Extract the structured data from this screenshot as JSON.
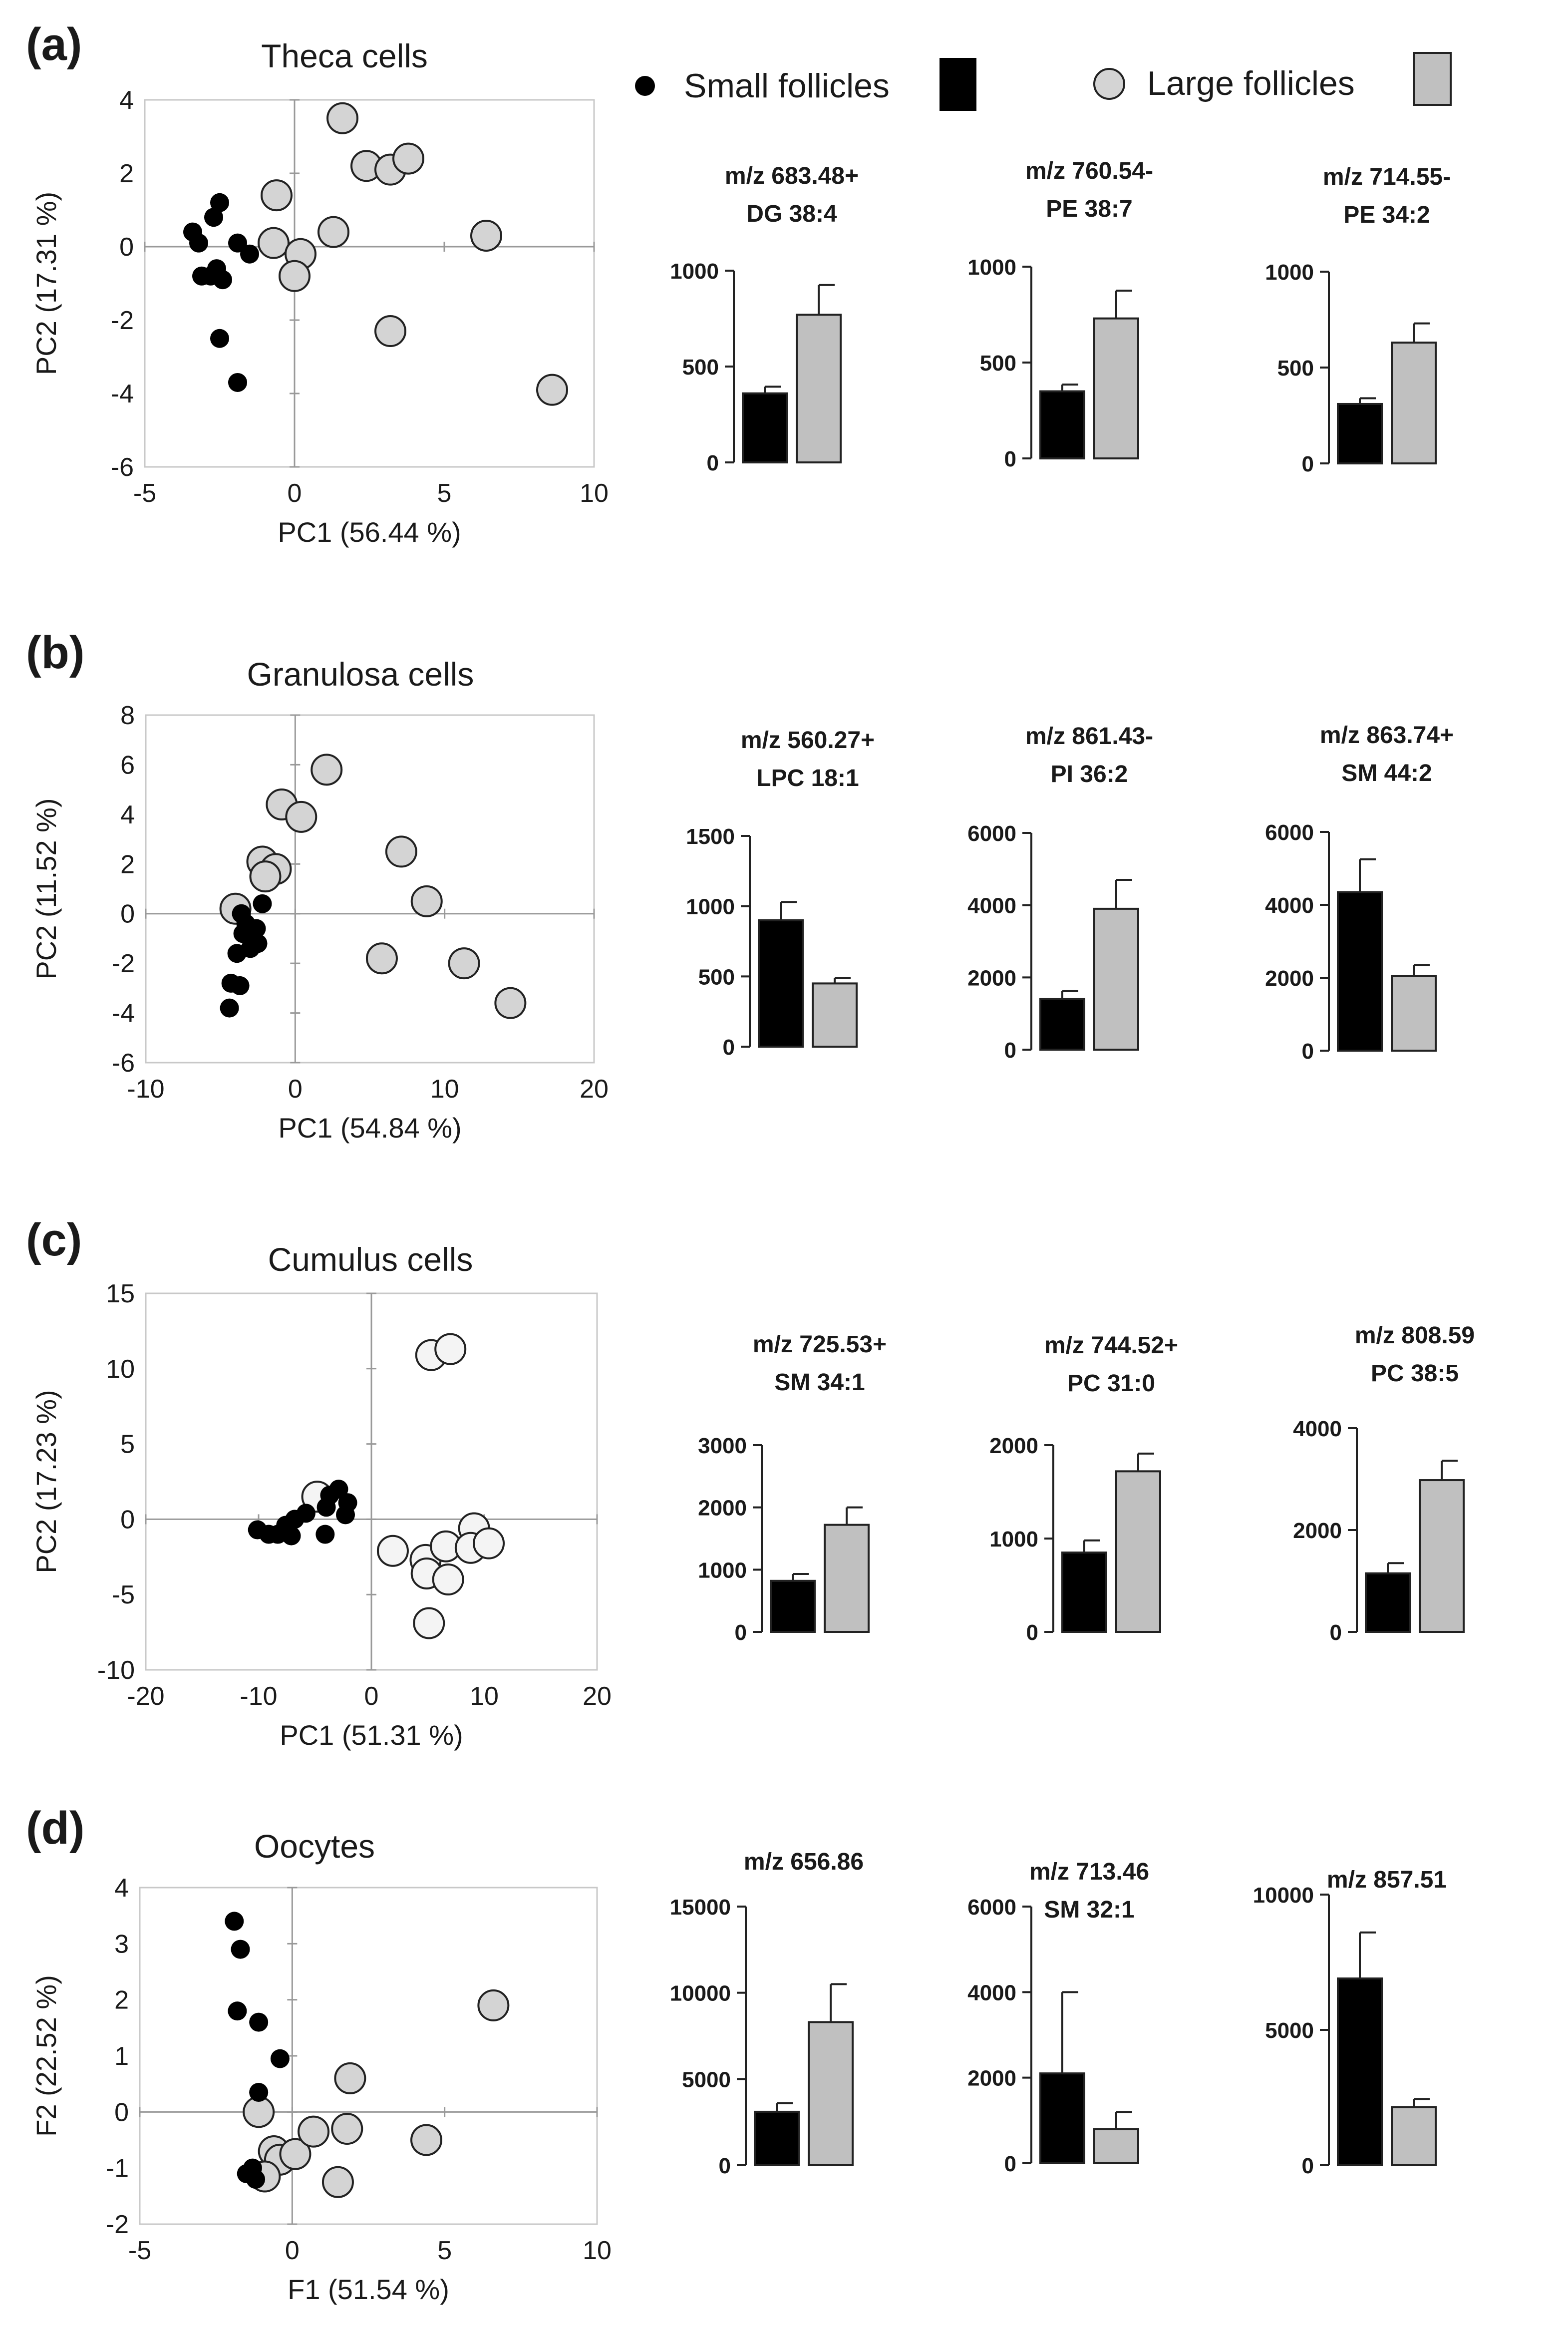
{
  "legend": {
    "small_label": "Small follicles",
    "large_label": "Large follicles"
  },
  "colors": {
    "small": "#000000",
    "large_bar": "#c0c0c0",
    "large_dot": "#d4d4d4",
    "axis": "#999999",
    "text": "#1a1a1a"
  },
  "chart_data": [
    {
      "panel": "(a)",
      "type": "scatter",
      "title": "Theca cells",
      "xlabel": "PC1 (56.44 %)",
      "ylabel": "PC2 (17.31 %)",
      "xlim": [
        -5,
        10
      ],
      "ylim": [
        -6,
        4
      ],
      "xticks": [
        -5,
        0,
        5,
        10
      ],
      "yticks": [
        -6,
        -4,
        -2,
        0,
        2,
        4
      ],
      "series": [
        {
          "name": "Small follicles",
          "points": [
            [
              -3.4,
              0.4
            ],
            [
              -3.2,
              0.1
            ],
            [
              -3.1,
              -0.8
            ],
            [
              -2.7,
              0.8
            ],
            [
              -2.5,
              1.2
            ],
            [
              -2.6,
              -0.6
            ],
            [
              -2.4,
              -0.9
            ],
            [
              -2.5,
              -2.5
            ],
            [
              -1.9,
              0.1
            ],
            [
              -1.5,
              -0.2
            ],
            [
              -1.9,
              -3.7
            ],
            [
              -2.8,
              -0.8
            ]
          ]
        },
        {
          "name": "Large follicles",
          "points": [
            [
              -0.6,
              1.4
            ],
            [
              -0.7,
              0.1
            ],
            [
              0.2,
              -0.2
            ],
            [
              0.0,
              -0.8
            ],
            [
              1.3,
              0.4
            ],
            [
              1.6,
              3.5
            ],
            [
              2.4,
              2.2
            ],
            [
              3.2,
              2.1
            ],
            [
              3.8,
              2.4
            ],
            [
              3.2,
              -2.3
            ],
            [
              6.4,
              0.3
            ],
            [
              8.6,
              -3.9
            ]
          ]
        }
      ]
    },
    {
      "panel": "(a)",
      "type": "bar",
      "title": [
        "m/z 683.48+",
        "DG 38:4"
      ],
      "categories": [
        "Small follicles",
        "Large follicles"
      ],
      "values": [
        360,
        770
      ],
      "errors": [
        35,
        155
      ],
      "ylim": [
        0,
        1000
      ],
      "yticks": [
        0,
        500,
        1000
      ]
    },
    {
      "panel": "(a)",
      "type": "bar",
      "title": [
        "m/z 760.54-",
        "PE 38:7"
      ],
      "categories": [
        "Small follicles",
        "Large follicles"
      ],
      "values": [
        350,
        730
      ],
      "errors": [
        35,
        145
      ],
      "ylim": [
        0,
        1000
      ],
      "yticks": [
        0,
        500,
        1000
      ]
    },
    {
      "panel": "(a)",
      "type": "bar",
      "title": [
        "m/z 714.55-",
        "PE 34:2"
      ],
      "categories": [
        "Small follicles",
        "Large follicles"
      ],
      "values": [
        310,
        630
      ],
      "errors": [
        30,
        100
      ],
      "ylim": [
        0,
        1000
      ],
      "yticks": [
        0,
        500,
        1000
      ]
    },
    {
      "panel": "(b)",
      "type": "scatter",
      "title": "Granulosa cells",
      "xlabel": "PC1 (54.84 %)",
      "ylabel": "PC2 (11.52 %)",
      "xlim": [
        -10,
        20
      ],
      "ylim": [
        -6,
        8
      ],
      "xticks": [
        -10,
        0,
        10,
        20
      ],
      "yticks": [
        -6,
        -4,
        -2,
        0,
        2,
        4,
        6,
        8
      ],
      "series": [
        {
          "name": "Small follicles",
          "points": [
            [
              -2.2,
              0.4
            ],
            [
              -3.6,
              0.0
            ],
            [
              -3.3,
              -0.4
            ],
            [
              -3.5,
              -0.8
            ],
            [
              -2.6,
              -0.6
            ],
            [
              -2.5,
              -1.2
            ],
            [
              -3.0,
              -1.4
            ],
            [
              -3.9,
              -1.6
            ],
            [
              -4.3,
              -2.8
            ],
            [
              -3.7,
              -2.9
            ],
            [
              -4.4,
              -3.8
            ]
          ]
        },
        {
          "name": "Large follicles",
          "points": [
            [
              -4.0,
              0.2
            ],
            [
              -2.2,
              2.1
            ],
            [
              -1.3,
              1.8
            ],
            [
              -2.0,
              1.5
            ],
            [
              -0.9,
              4.4
            ],
            [
              0.4,
              3.9
            ],
            [
              2.1,
              5.8
            ],
            [
              7.1,
              2.5
            ],
            [
              8.8,
              0.5
            ],
            [
              5.8,
              -1.8
            ],
            [
              11.3,
              -2.0
            ],
            [
              14.4,
              -3.6
            ]
          ]
        }
      ]
    },
    {
      "panel": "(b)",
      "type": "bar",
      "title": [
        "m/z 560.27+",
        "LPC 18:1"
      ],
      "categories": [
        "Small follicles",
        "Large follicles"
      ],
      "values": [
        900,
        450
      ],
      "errors": [
        130,
        40
      ],
      "ylim": [
        0,
        1500
      ],
      "yticks": [
        0,
        500,
        1000,
        1500
      ]
    },
    {
      "panel": "(b)",
      "type": "bar",
      "title": [
        "m/z 861.43-",
        "PI 36:2"
      ],
      "categories": [
        "Small follicles",
        "Large follicles"
      ],
      "values": [
        1400,
        3900
      ],
      "errors": [
        220,
        800
      ],
      "ylim": [
        0,
        6000
      ],
      "yticks": [
        0,
        2000,
        4000,
        6000
      ]
    },
    {
      "panel": "(b)",
      "type": "bar",
      "title": [
        "m/z 863.74+",
        "SM 44:2"
      ],
      "categories": [
        "Small follicles",
        "Large follicles"
      ],
      "values": [
        4350,
        2050
      ],
      "errors": [
        900,
        300
      ],
      "ylim": [
        0,
        6000
      ],
      "yticks": [
        0,
        2000,
        4000,
        6000
      ]
    },
    {
      "panel": "(c)",
      "type": "scatter",
      "title": "Cumulus cells",
      "xlabel": "PC1 (51.31 %)",
      "ylabel": "PC2 (17.23 %)",
      "xlim": [
        -20,
        20
      ],
      "ylim": [
        -10,
        15
      ],
      "xticks": [
        -20,
        -10,
        0,
        10,
        20
      ],
      "yticks": [
        -10,
        -5,
        0,
        5,
        10,
        15
      ],
      "series": [
        {
          "name": "Small follicles",
          "points": [
            [
              -2.9,
              2.0
            ],
            [
              -3.7,
              1.6
            ],
            [
              -2.1,
              1.1
            ],
            [
              -4.0,
              0.8
            ],
            [
              -2.3,
              0.3
            ],
            [
              -5.8,
              0.4
            ],
            [
              -6.8,
              0.0
            ],
            [
              -7.6,
              -0.4
            ],
            [
              -8.3,
              -1.0
            ],
            [
              -7.1,
              -1.1
            ],
            [
              -9.1,
              -1.0
            ],
            [
              -10.1,
              -0.7
            ],
            [
              -4.1,
              -1.0
            ]
          ]
        },
        {
          "name": "Large follicles",
          "points": [
            [
              -4.8,
              1.5
            ],
            [
              5.3,
              10.9
            ],
            [
              7.0,
              11.3
            ],
            [
              1.9,
              -2.1
            ],
            [
              4.8,
              -2.7
            ],
            [
              4.9,
              -3.6
            ],
            [
              6.6,
              -1.8
            ],
            [
              6.8,
              -4.0
            ],
            [
              9.1,
              -0.6
            ],
            [
              8.8,
              -1.9
            ],
            [
              10.4,
              -1.6
            ],
            [
              5.1,
              -6.9
            ]
          ]
        }
      ]
    },
    {
      "panel": "(c)",
      "type": "bar",
      "title": [
        "m/z 725.53+",
        "SM 34:1"
      ],
      "categories": [
        "Small follicles",
        "Large follicles"
      ],
      "values": [
        820,
        1720
      ],
      "errors": [
        110,
        280
      ],
      "ylim": [
        0,
        3000
      ],
      "yticks": [
        0,
        1000,
        2000,
        3000
      ]
    },
    {
      "panel": "(c)",
      "type": "bar",
      "title": [
        "m/z 744.52+",
        "PC 31:0"
      ],
      "categories": [
        "Small follicles",
        "Large follicles"
      ],
      "values": [
        850,
        1720
      ],
      "errors": [
        130,
        190
      ],
      "ylim": [
        0,
        2000
      ],
      "yticks": [
        0,
        1000,
        2000
      ]
    },
    {
      "panel": "(c)",
      "type": "bar",
      "title": [
        "m/z 808.59",
        "PC 38:5"
      ],
      "categories": [
        "Small follicles",
        "Large follicles"
      ],
      "values": [
        1150,
        2980
      ],
      "errors": [
        200,
        380
      ],
      "ylim": [
        0,
        4000
      ],
      "yticks": [
        0,
        2000,
        4000
      ]
    },
    {
      "panel": "(d)",
      "type": "scatter",
      "title": "Oocytes",
      "xlabel": "F1 (51.54 %)",
      "ylabel": "F2 (22.52 %)",
      "xlim": [
        -5,
        10
      ],
      "ylim": [
        -2,
        4
      ],
      "xticks": [
        -5,
        0,
        5,
        10
      ],
      "yticks": [
        -2,
        -1,
        0,
        1,
        2,
        3,
        4
      ],
      "series": [
        {
          "name": "Small follicles",
          "points": [
            [
              -1.9,
              3.4
            ],
            [
              -1.7,
              2.9
            ],
            [
              -1.8,
              1.8
            ],
            [
              -1.1,
              1.6
            ],
            [
              -0.4,
              0.95
            ],
            [
              -1.1,
              0.35
            ],
            [
              -1.5,
              -1.1
            ],
            [
              -1.2,
              -1.2
            ],
            [
              -1.3,
              -1.0
            ]
          ]
        },
        {
          "name": "Large follicles",
          "points": [
            [
              -1.1,
              0.0
            ],
            [
              -0.6,
              -0.7
            ],
            [
              -0.4,
              -0.85
            ],
            [
              0.1,
              -0.75
            ],
            [
              0.7,
              -0.35
            ],
            [
              -0.9,
              -1.15
            ],
            [
              1.9,
              0.6
            ],
            [
              1.8,
              -0.3
            ],
            [
              1.5,
              -1.25
            ],
            [
              4.4,
              -0.5
            ],
            [
              6.6,
              1.9
            ]
          ]
        }
      ]
    },
    {
      "panel": "(d)",
      "type": "bar",
      "title": [
        "m/z 656.86"
      ],
      "categories": [
        "Small follicles",
        "Large follicles"
      ],
      "values": [
        3100,
        8300
      ],
      "errors": [
        500,
        2200
      ],
      "ylim": [
        0,
        15000
      ],
      "yticks": [
        0,
        5000,
        10000,
        15000
      ]
    },
    {
      "panel": "(d)",
      "type": "bar",
      "title": [
        "m/z 713.46",
        "SM 32:1"
      ],
      "categories": [
        "Small follicles",
        "Large follicles"
      ],
      "values": [
        2100,
        800
      ],
      "errors": [
        1900,
        400
      ],
      "ylim": [
        0,
        6000
      ],
      "yticks": [
        0,
        2000,
        4000,
        6000
      ]
    },
    {
      "panel": "(d)",
      "type": "bar",
      "title": [
        "m/z 857.51"
      ],
      "categories": [
        "Small follicles",
        "Large follicles"
      ],
      "values": [
        6900,
        2150
      ],
      "errors": [
        1700,
        300
      ],
      "ylim": [
        0,
        10000
      ],
      "yticks": [
        0,
        5000,
        10000
      ]
    }
  ]
}
